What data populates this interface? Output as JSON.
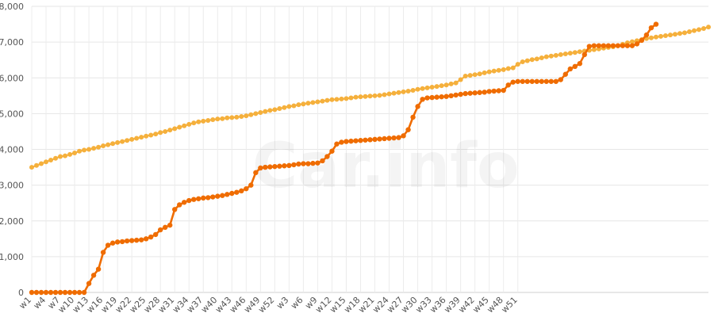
{
  "watermark": "Car.info",
  "chart_data": {
    "type": "line",
    "y_ticks": [
      "0",
      "1,000",
      "2,000",
      "3,000",
      "4,000",
      "5,000",
      "6,000",
      "7,000",
      "8,000"
    ],
    "ylim": [
      0,
      8000
    ],
    "x_tick_labels": [
      "w1",
      "w4",
      "w7",
      "w10",
      "w13",
      "w16",
      "w19",
      "w22",
      "w25",
      "w28",
      "w31",
      "w34",
      "w37",
      "w40",
      "w43",
      "w46",
      "w49",
      "w52",
      "w3",
      "w6",
      "w9",
      "w12",
      "w15",
      "w18",
      "w21",
      "w24",
      "w27",
      "w30",
      "w33",
      "w36",
      "w39",
      "w42",
      "w45",
      "w48",
      "w51"
    ],
    "grid": true,
    "colors": {
      "series_a": "#f5b03c",
      "series_b": "#ef6c00",
      "grid": "#e6e6e6"
    },
    "series": [
      {
        "key": "a",
        "values": [
          3500,
          3550,
          3600,
          3650,
          3700,
          3750,
          3800,
          3820,
          3860,
          3900,
          3950,
          3980,
          4000,
          4030,
          4060,
          4100,
          4130,
          4160,
          4190,
          4220,
          4250,
          4280,
          4310,
          4340,
          4370,
          4400,
          4430,
          4470,
          4500,
          4540,
          4580,
          4620,
          4660,
          4700,
          4740,
          4770,
          4790,
          4810,
          4830,
          4850,
          4860,
          4880,
          4890,
          4900,
          4920,
          4940,
          4970,
          5000,
          5030,
          5060,
          5090,
          5110,
          5140,
          5170,
          5200,
          5220,
          5250,
          5270,
          5290,
          5310,
          5330,
          5350,
          5370,
          5390,
          5400,
          5410,
          5420,
          5440,
          5460,
          5470,
          5480,
          5490,
          5500,
          5510,
          5530,
          5550,
          5570,
          5590,
          5610,
          5630,
          5650,
          5680,
          5700,
          5720,
          5740,
          5760,
          5780,
          5800,
          5830,
          5860,
          5950,
          6050,
          6070,
          6090,
          6110,
          6140,
          6170,
          6190,
          6210,
          6230,
          6260,
          6280,
          6380,
          6450,
          6480,
          6510,
          6530,
          6560,
          6590,
          6610,
          6630,
          6650,
          6670,
          6690,
          6710,
          6730,
          6750,
          6770,
          6790,
          6810,
          6830,
          6850,
          6870,
          6900,
          6940,
          6980,
          7010,
          7040,
          7070,
          7100,
          7120,
          7140,
          7160,
          7180,
          7200,
          7220,
          7240,
          7260,
          7290,
          7320,
          7350,
          7380,
          7420
        ]
      },
      {
        "key": "b",
        "values": [
          0,
          0,
          0,
          0,
          0,
          0,
          0,
          0,
          0,
          0,
          0,
          0,
          250,
          480,
          650,
          1120,
          1320,
          1380,
          1410,
          1420,
          1440,
          1450,
          1460,
          1470,
          1500,
          1550,
          1620,
          1750,
          1820,
          1880,
          2320,
          2450,
          2520,
          2570,
          2600,
          2620,
          2640,
          2650,
          2670,
          2690,
          2710,
          2740,
          2770,
          2800,
          2840,
          2900,
          3000,
          3350,
          3480,
          3500,
          3510,
          3520,
          3530,
          3540,
          3550,
          3570,
          3590,
          3600,
          3600,
          3610,
          3620,
          3680,
          3800,
          3950,
          4150,
          4200,
          4220,
          4230,
          4240,
          4250,
          4260,
          4270,
          4280,
          4290,
          4300,
          4310,
          4320,
          4330,
          4380,
          4550,
          4900,
          5200,
          5400,
          5440,
          5450,
          5460,
          5470,
          5480,
          5500,
          5520,
          5540,
          5560,
          5570,
          5580,
          5590,
          5600,
          5620,
          5630,
          5640,
          5650,
          5800,
          5880,
          5900,
          5900,
          5900,
          5900,
          5900,
          5900,
          5900,
          5900,
          5900,
          5950,
          6100,
          6250,
          6320,
          6400,
          6650,
          6880,
          6900,
          6900,
          6900,
          6900,
          6900,
          6900,
          6900,
          6900,
          6900,
          6950,
          7050,
          7200,
          7400,
          7500
        ]
      }
    ]
  }
}
